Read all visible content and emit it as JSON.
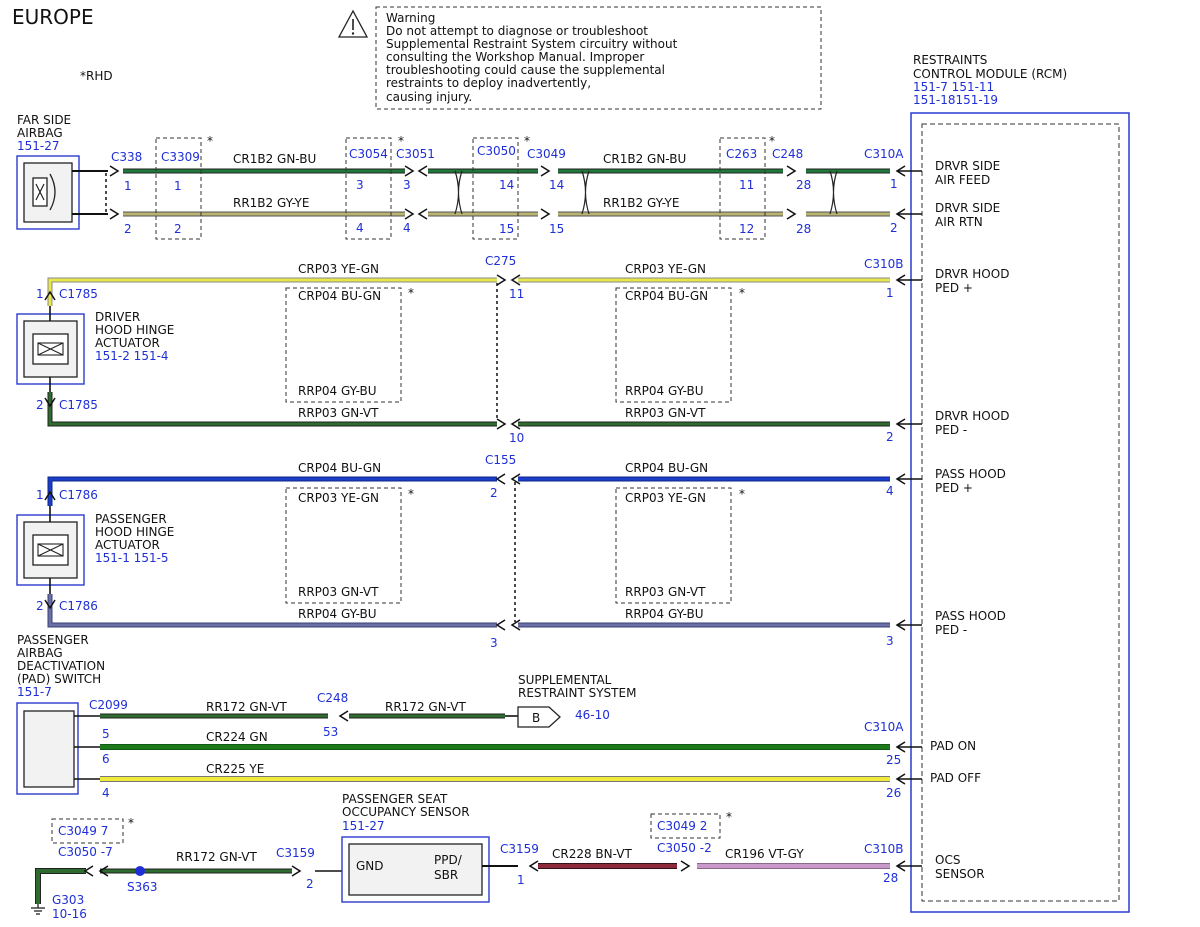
{
  "header": {
    "region": "EUROPE",
    "rhd_note": "*RHD",
    "warning": [
      "Warning",
      "Do not attempt to diagnose or troubleshoot",
      "Supplemental Restraint System circuitry without",
      "consulting the Workshop Manual. Improper",
      "troubleshooting could cause the supplemental",
      "restraints to deploy inadvertently,",
      "causing injury."
    ]
  },
  "rcm": {
    "title": [
      "RESTRAINTS",
      "CONTROL MODULE (RCM)"
    ],
    "refs": [
      "151-7  151-11",
      "151-18151-19"
    ],
    "pins": [
      [
        "DRVR SIDE",
        "AIR FEED"
      ],
      [
        "DRVR SIDE",
        "AIR RTN"
      ],
      [
        "DRVR HOOD",
        "PED +"
      ],
      [
        "DRVR HOOD",
        "PED -"
      ],
      [
        "PASS HOOD",
        "PED +"
      ],
      [
        "PASS HOOD",
        "PED -"
      ],
      [
        "PAD ON"
      ],
      [
        "PAD OFF"
      ],
      [
        "OCS",
        "SENSOR"
      ]
    ]
  },
  "components": {
    "far_side_airbag": {
      "name": [
        "FAR SIDE",
        "AIRBAG"
      ],
      "ref": "151-27"
    },
    "driver_actuator": {
      "name": [
        "DRIVER",
        "HOOD HINGE",
        "ACTUATOR"
      ],
      "ref": "151-2 151-4"
    },
    "passenger_actuator": {
      "name": [
        "PASSENGER",
        "HOOD HINGE",
        "ACTUATOR"
      ],
      "ref": "151-1 151-5"
    },
    "pad_switch": {
      "name": [
        "PASSENGER",
        "AIRBAG",
        "DEACTIVATION",
        "(PAD) SWITCH"
      ],
      "ref": "151-7"
    },
    "occupancy_sensor": {
      "name": [
        "PASSENGER SEAT",
        "OCCUPANCY SENSOR"
      ],
      "ref": "151-27",
      "pins": [
        "GND",
        "PPD/",
        "SBR"
      ]
    },
    "srs": {
      "name": [
        "SUPPLEMENTAL",
        "RESTRAINT SYSTEM"
      ],
      "letter": "B",
      "ref": "46-10"
    },
    "ground": {
      "id": "G303",
      "ref": "10-16"
    },
    "splice": "S363"
  },
  "connectors": {
    "c338": "C338",
    "c3309": "C3309",
    "c3054": "C3054",
    "c3051": "C3051",
    "c3050": "C3050",
    "c3049": "C3049",
    "c263": "C263",
    "c248": "C248",
    "c310a": "C310A",
    "c310b": "C310B",
    "c275": "C275",
    "c155": "C155",
    "c1785": "C1785",
    "c1786": "C1786",
    "c2099": "C2099",
    "c3159": "C3159",
    "c3049_7": "C3049  7",
    "c3050_7": "C3050 -7",
    "c3049_2": "C3049  2",
    "c3050_2": "C3050 -2"
  },
  "pins": [
    "1",
    "2",
    "3",
    "4",
    "5",
    "6",
    "10",
    "11",
    "12",
    "14",
    "15",
    "25",
    "26",
    "28",
    "53"
  ],
  "wires": {
    "cr1b2": "CR1B2   GN-BU",
    "rr1b2": "RR1B2   GY-YE",
    "crp03": "CRP03   YE-GN",
    "crp04_bu_gn": "CRP04   BU-GN",
    "rrp04_gy_bu": "RRP04   GY-BU",
    "rrp03_gn_vt": "RRP03   GN-VT",
    "rr172": "RR172    GN-VT",
    "cr224": "CR224    GN",
    "cr225": "CR225    YE",
    "cr228": "CR228    BN-VT",
    "cr196": "CR196    VT-GY"
  },
  "colors": {
    "label_blue": "#1f2fd6",
    "gn_bu": "#1f7a3a",
    "gy_ye": "#b8b470",
    "ye_gn": "#e8e84a",
    "gn_vt": "#2e6b2e",
    "bu_gn": "#1a3ec8",
    "gy_bu": "#6a6fa8",
    "gn": "#1c7a1c",
    "ye": "#f0ea3a",
    "bn_vt": "#8a2a3a",
    "vt_gy": "#c99ac9"
  }
}
